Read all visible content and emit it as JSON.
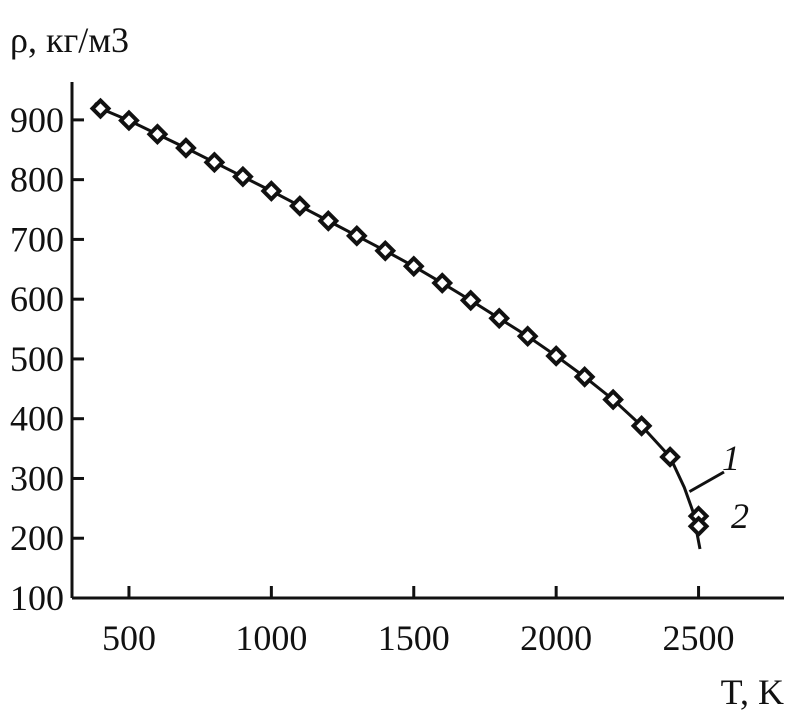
{
  "chart_data": {
    "type": "line",
    "title": "",
    "xlabel": "T, K",
    "ylabel": "ρ, кг/м3",
    "xlim": [
      300,
      2800
    ],
    "ylim": [
      100,
      950
    ],
    "x_ticks": [
      {
        "value": 500,
        "label": "500"
      },
      {
        "value": 1000,
        "label": "1000"
      },
      {
        "value": 1500,
        "label": "1500"
      },
      {
        "value": 2000,
        "label": "2000"
      },
      {
        "value": 2500,
        "label": "2500"
      }
    ],
    "y_ticks": [
      {
        "value": 100,
        "label": "100"
      },
      {
        "value": 200,
        "label": "200"
      },
      {
        "value": 300,
        "label": "300"
      },
      {
        "value": 400,
        "label": "400"
      },
      {
        "value": 500,
        "label": "500"
      },
      {
        "value": 600,
        "label": "600"
      },
      {
        "value": 700,
        "label": "700"
      },
      {
        "value": 800,
        "label": "800"
      },
      {
        "value": 900,
        "label": "900"
      }
    ],
    "series": [
      {
        "label": "1",
        "style": "solid line",
        "x": [
          380,
          400,
          500,
          600,
          700,
          800,
          900,
          1000,
          1100,
          1200,
          1300,
          1400,
          1500,
          1600,
          1700,
          1800,
          1900,
          2000,
          2100,
          2200,
          2300,
          2400,
          2450,
          2480,
          2505
        ],
        "y": [
          928,
          919,
          899,
          876,
          853,
          829,
          805,
          781,
          756,
          731,
          706,
          681,
          655,
          627,
          598,
          568,
          538,
          505,
          470,
          432,
          388,
          336,
          285,
          245,
          182
        ]
      },
      {
        "label": "2",
        "style": "diamond markers",
        "x": [
          400,
          500,
          600,
          700,
          800,
          900,
          1000,
          1100,
          1200,
          1300,
          1400,
          1500,
          1600,
          1700,
          1800,
          1900,
          2000,
          2100,
          2200,
          2300,
          2400,
          2500,
          2500
        ],
        "y": [
          919,
          899,
          876,
          853,
          829,
          805,
          781,
          756,
          731,
          706,
          681,
          655,
          627,
          598,
          568,
          538,
          505,
          470,
          432,
          388,
          336,
          237,
          220
        ]
      }
    ],
    "legend": "inline labels near curve end",
    "grid": false
  }
}
